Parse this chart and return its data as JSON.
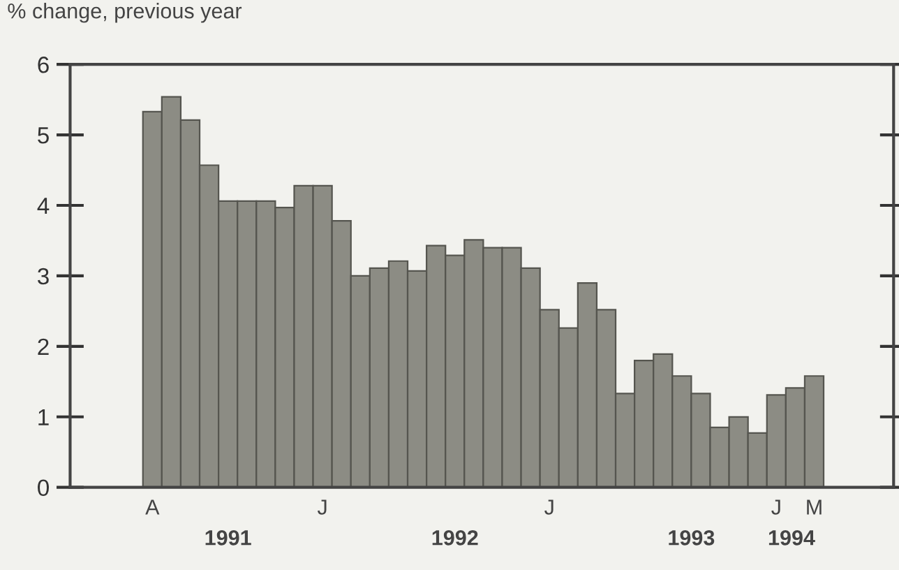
{
  "chart_data": {
    "type": "bar",
    "ylabel": "% change, previous year",
    "categories": [
      "A",
      null,
      null,
      null,
      null,
      null,
      null,
      null,
      null,
      "J",
      null,
      null,
      null,
      null,
      null,
      null,
      null,
      null,
      null,
      null,
      null,
      "J",
      null,
      null,
      null,
      null,
      null,
      null,
      null,
      null,
      null,
      null,
      null,
      "J",
      null,
      "M"
    ],
    "values": [
      5.33,
      5.54,
      5.21,
      4.57,
      4.06,
      4.06,
      4.06,
      3.97,
      4.28,
      4.28,
      3.78,
      3.0,
      3.11,
      3.21,
      3.07,
      3.43,
      3.29,
      3.51,
      3.4,
      3.4,
      3.11,
      2.52,
      2.26,
      2.9,
      2.52,
      1.33,
      1.8,
      1.89,
      1.58,
      1.33,
      0.85,
      1.0,
      0.77,
      1.31,
      1.41,
      1.58
    ],
    "color": "#8c8c84",
    "ylim": [
      0,
      6
    ],
    "yticks": [
      0,
      1,
      2,
      3,
      4,
      5,
      6
    ],
    "grid": false,
    "annotations": [
      "1991",
      "1992",
      "1993",
      "1994"
    ]
  }
}
